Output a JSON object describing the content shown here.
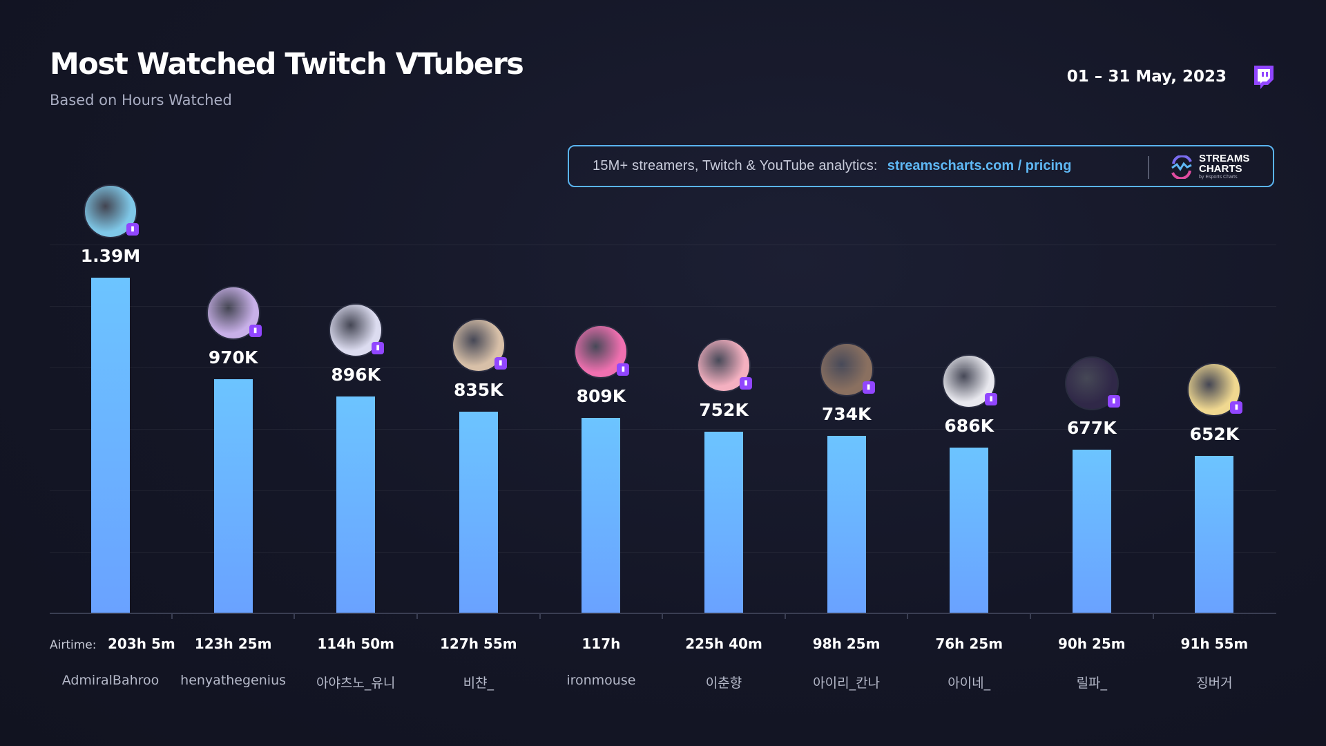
{
  "header": {
    "title": "Most Watched Twitch VTubers",
    "subtitle": "Based on Hours Watched",
    "date": "01 – 31 May, 2023",
    "platform_icon": "twitch-icon"
  },
  "banner": {
    "text": "15M+ streamers, Twitch & YouTube analytics:",
    "link": "streamscharts.com / pricing",
    "logo_line1": "STREAMS",
    "logo_line2": "CHARTS",
    "logo_by": "by Esports Charts"
  },
  "colors": {
    "bar_top": "#6cc4ff",
    "bar_bottom": "#6aa2ff",
    "accent": "#5fb8f5",
    "twitch": "#9146ff"
  },
  "chart_data": {
    "type": "bar",
    "title": "Most Watched Twitch VTubers",
    "subtitle": "Based on Hours Watched",
    "airtime_label": "Airtime:",
    "categories": [
      "AdmiralBahroo",
      "henyathegenius",
      "아야츠노_유니",
      "비챤_",
      "ironmouse",
      "이춘향",
      "아이리_칸나",
      "아이네_",
      "릴파_",
      "징버거"
    ],
    "values": [
      1390000,
      970000,
      896000,
      835000,
      809000,
      752000,
      734000,
      686000,
      677000,
      652000
    ],
    "value_labels": [
      "1.39M",
      "970K",
      "896K",
      "835K",
      "809K",
      "752K",
      "734K",
      "686K",
      "677K",
      "652K"
    ],
    "airtime": [
      "203h 5m",
      "123h 25m",
      "114h 50m",
      "127h 55m",
      "117h",
      "225h 40m",
      "98h 25m",
      "76h 25m",
      "90h 25m",
      "91h 55m"
    ],
    "avatar_colors": [
      "#7fc8e8",
      "#c8b0e8",
      "#dcdcf0",
      "#d8c0a8",
      "#f070b0",
      "#f4b0c0",
      "#8a7060",
      "#e8e8ee",
      "#302848",
      "#f0d890"
    ],
    "ylim": [
      0,
      1390000
    ],
    "grid": true
  }
}
